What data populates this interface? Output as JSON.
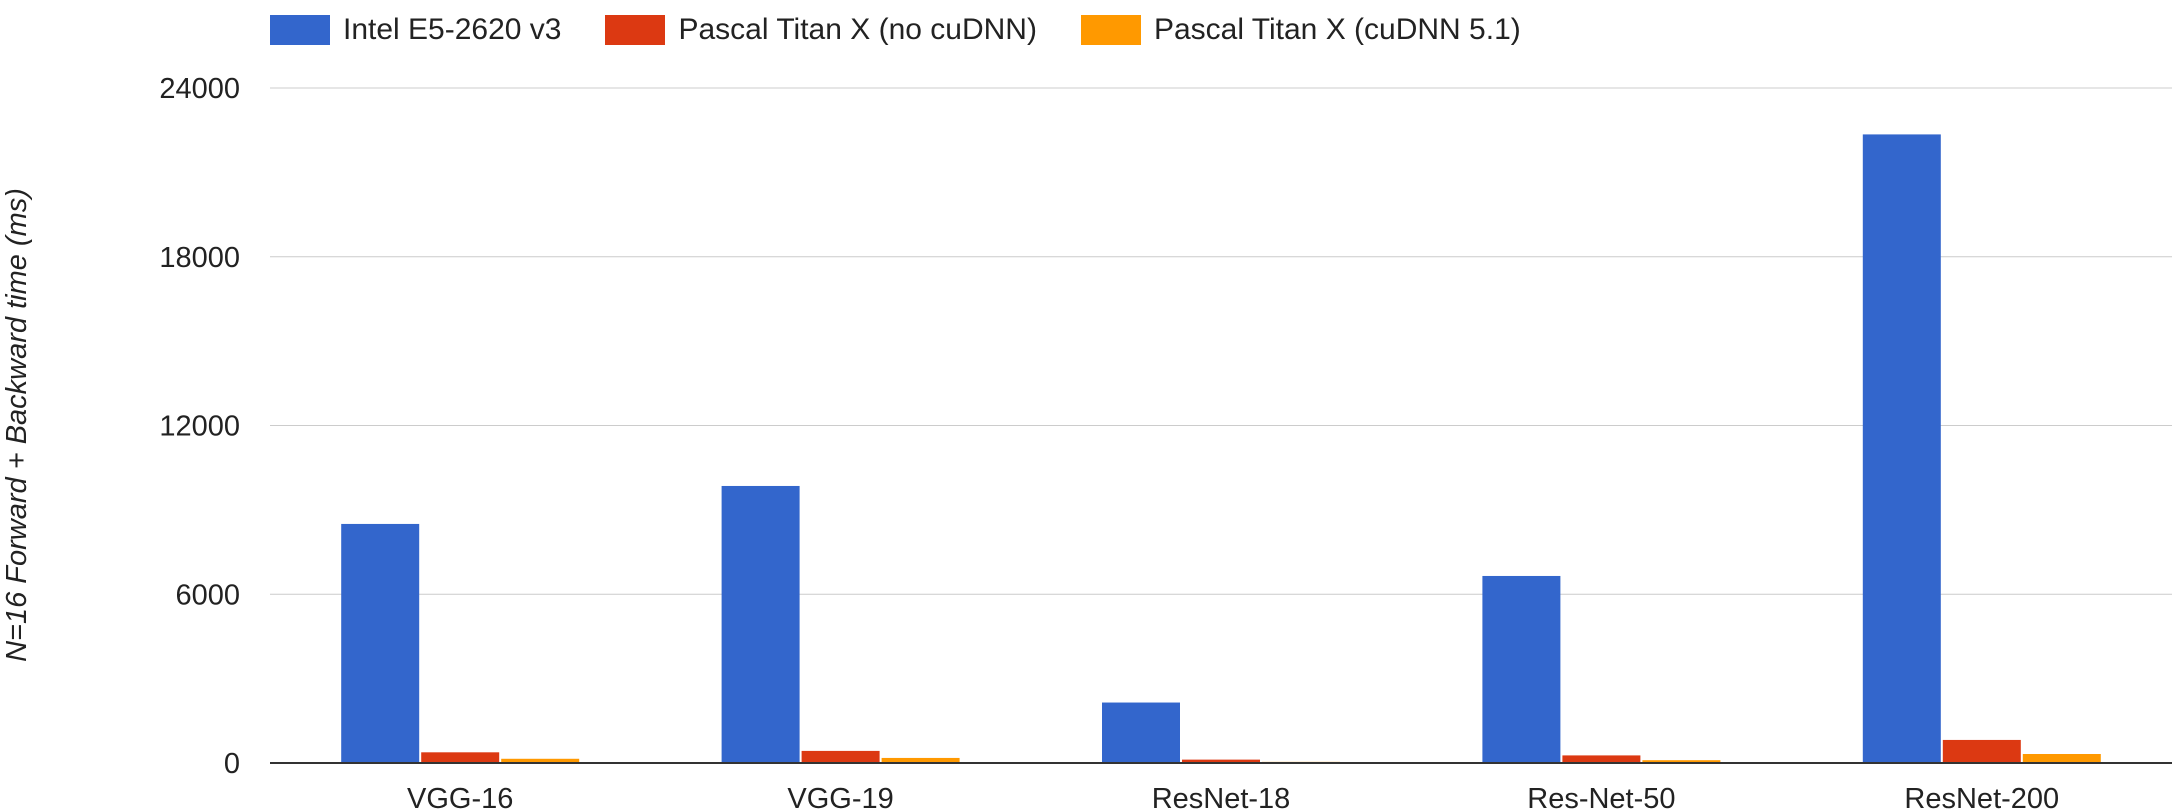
{
  "chart_data": {
    "type": "bar",
    "title": "",
    "xlabel": "",
    "ylabel": "N=16 Forward + Backward time (ms)",
    "categories": [
      "VGG-16",
      "VGG-19",
      "ResNet-18",
      "Res-Net-50",
      "ResNet-200"
    ],
    "yticks": [
      "0",
      "6000",
      "12000",
      "18000",
      "24000"
    ],
    "ylim": [
      0,
      24000
    ],
    "grid": true,
    "legend_position": "top",
    "series": [
      {
        "name": "Intel E5-2620 v3",
        "color": "#3366cc",
        "values": [
          8500,
          9850,
          2150,
          6650,
          22350
        ]
      },
      {
        "name": "Pascal Titan X (no cuDNN)",
        "color": "#dc3912",
        "values": [
          380,
          430,
          120,
          270,
          820
        ]
      },
      {
        "name": "Pascal Titan X (cuDNN 5.1)",
        "color": "#ff9900",
        "values": [
          150,
          180,
          40,
          100,
          320
        ]
      }
    ]
  }
}
